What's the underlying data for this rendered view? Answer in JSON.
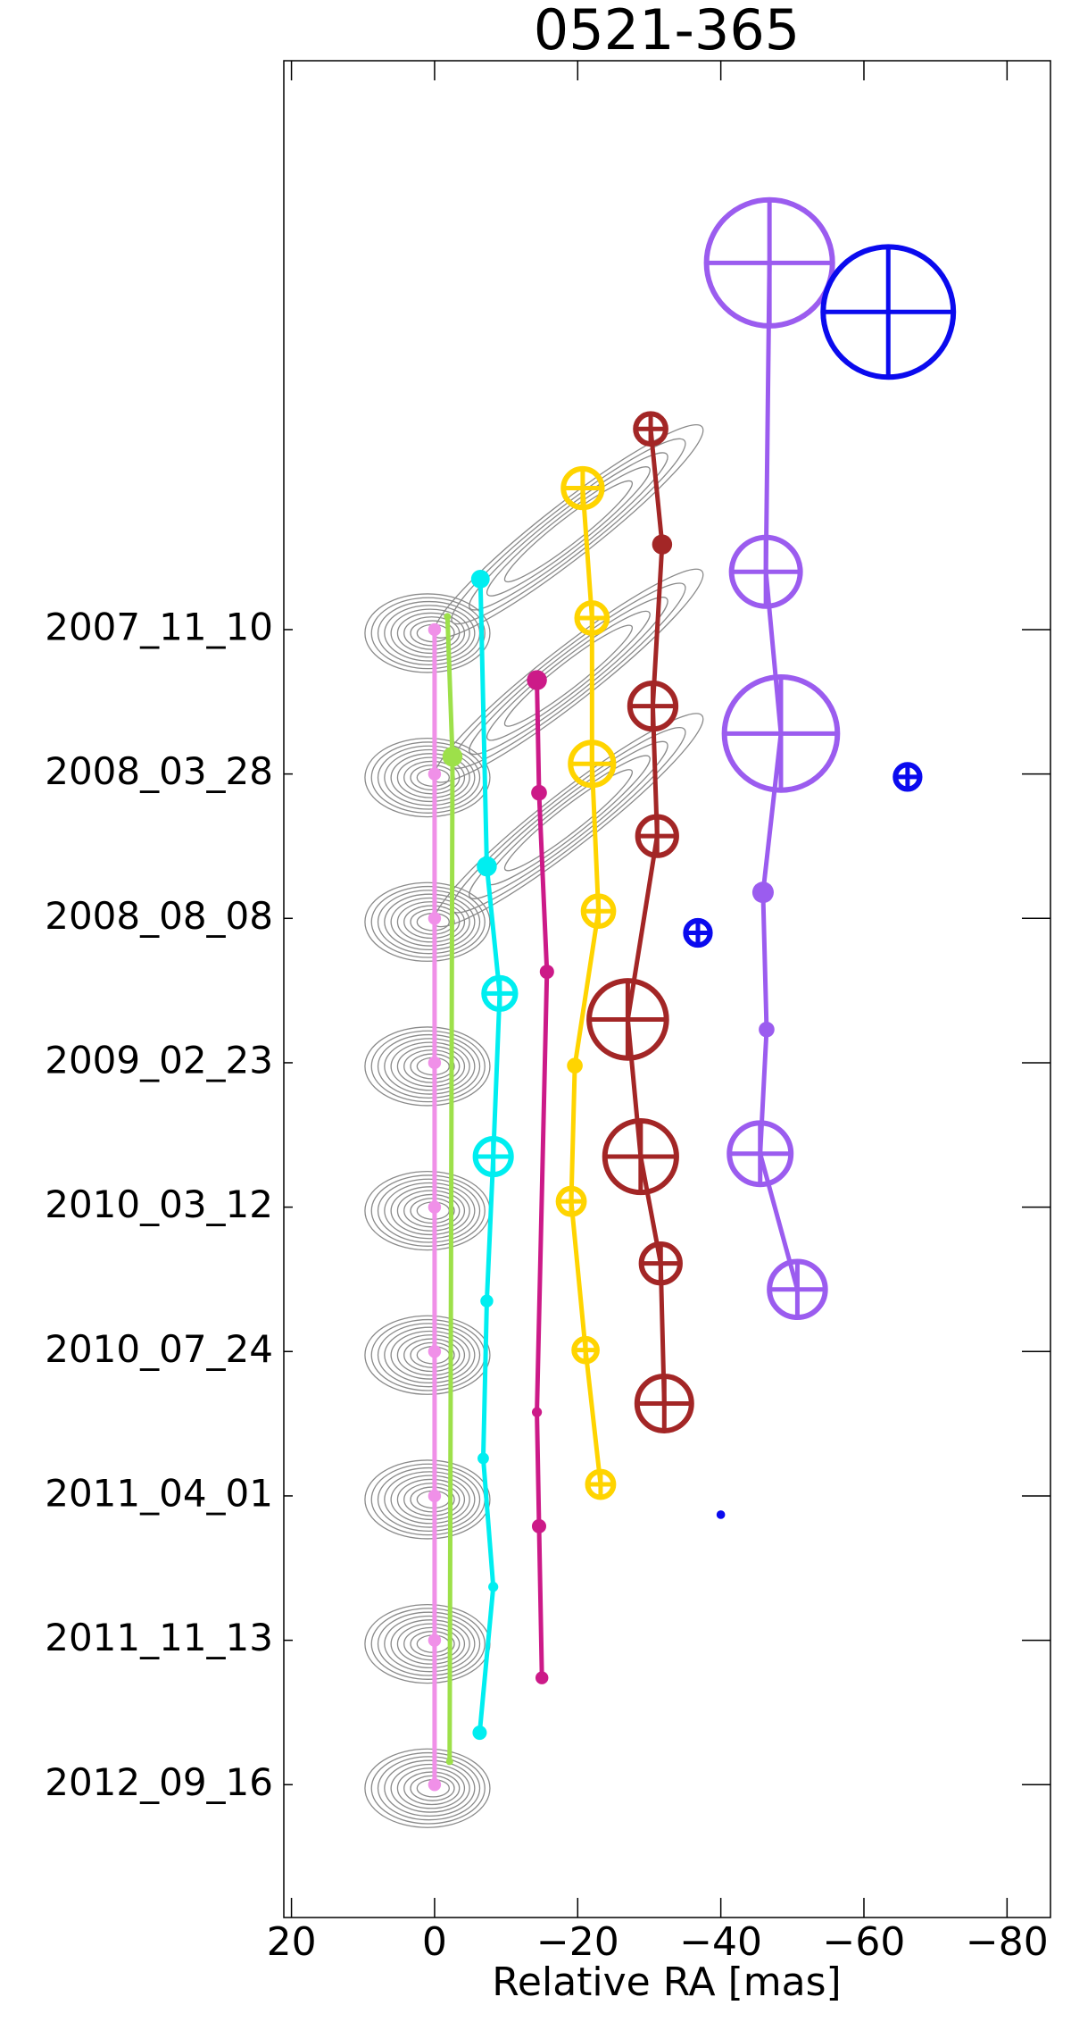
{
  "chart_data": {
    "type": "scatter",
    "title": "0521-365",
    "x_label": "Relative RA [mas]",
    "xlim": [
      21.07,
      -86.07
    ],
    "ylim": [
      -3.94,
      8.92
    ],
    "xticks": [
      20,
      0,
      {
        "value": -20,
        "label": "−20"
      },
      {
        "value": -40,
        "label": "−40"
      },
      {
        "value": -60,
        "label": "−60"
      },
      {
        "value": -80,
        "label": "−80"
      }
    ],
    "yticks": [
      {
        "value": 0,
        "label": "2007_11_10"
      },
      {
        "value": 1,
        "label": "2008_03_28"
      },
      {
        "value": 2,
        "label": "2008_08_08"
      },
      {
        "value": 3,
        "label": "2009_02_23"
      },
      {
        "value": 4,
        "label": "2010_03_12"
      },
      {
        "value": 5,
        "label": "2010_07_24"
      },
      {
        "value": 6,
        "label": "2011_04_01"
      },
      {
        "value": 7,
        "label": "2011_11_13"
      },
      {
        "value": 8,
        "label": "2012_09_16"
      }
    ],
    "series": [
      {
        "color": "#f090e8",
        "line": true,
        "x": [
          0,
          0,
          0,
          0,
          0,
          0,
          0,
          0,
          0
        ],
        "values": [
          0,
          1,
          2,
          3,
          4,
          5,
          6,
          7,
          8
        ],
        "size": [
          0.9,
          0.9,
          0.9,
          0.9,
          0.9,
          0.9,
          0.9,
          0.9,
          0.9
        ]
      },
      {
        "color": "#9de04a",
        "line": true,
        "x": [
          -1.8,
          -2.5,
          -2.1
        ],
        "values": [
          -0.09,
          0.88,
          7.84
        ],
        "size": [
          0.5,
          1.4,
          0.5
        ]
      },
      {
        "color": "#00eef0",
        "line": true,
        "x": [
          -6.4,
          -7.3,
          -9.1,
          -8.2,
          -7.3,
          -6.8,
          -8.2,
          -6.3
        ],
        "values": [
          -0.35,
          1.64,
          2.52,
          3.65,
          4.65,
          5.74,
          6.63,
          7.64
        ],
        "size": [
          1.3,
          1.4,
          2.2,
          2.5,
          0.9,
          0.8,
          0.7,
          1.0
        ]
      },
      {
        "color": "#cc1a88",
        "line": true,
        "x": [
          -14.3,
          -14.6,
          -15.7,
          -14.3,
          -14.6,
          -15.0
        ],
        "values": [
          0.35,
          1.13,
          2.37,
          5.42,
          6.21,
          7.26
        ],
        "size": [
          1.4,
          1.1,
          1.0,
          0.7,
          1.0,
          0.9
        ]
      },
      {
        "color": "#ffd400",
        "line": true,
        "x": [
          -20.7,
          -22.0,
          -22.0,
          -22.9,
          -19.6,
          -19.1,
          -21.1,
          -23.2
        ],
        "values": [
          -0.98,
          -0.08,
          0.93,
          1.95,
          3.02,
          3.96,
          4.99,
          5.92
        ],
        "size": [
          2.7,
          2.1,
          3.0,
          2.1,
          1.1,
          1.8,
          1.6,
          1.8
        ]
      },
      {
        "color": "#a32626",
        "line": true,
        "x": [
          -30.2,
          -31.8,
          -30.5,
          -31.1,
          -27.0,
          -28.8,
          -31.6,
          -32.1
        ],
        "values": [
          -1.39,
          -0.59,
          0.53,
          1.43,
          2.7,
          3.65,
          4.39,
          5.36
        ],
        "size": [
          2.1,
          1.4,
          3.2,
          2.7,
          5.4,
          5.0,
          2.7,
          3.8
        ]
      },
      {
        "color": "#9b5cef",
        "line": true,
        "x": [
          -46.8,
          -46.3,
          -48.4,
          -45.9,
          -46.4,
          -45.5,
          -50.7
        ],
        "values": [
          -2.54,
          -0.4,
          0.72,
          1.82,
          2.77,
          3.63,
          4.57
        ],
        "size": [
          8.8,
          4.8,
          7.9,
          1.5,
          1.1,
          4.3,
          3.9
        ]
      },
      {
        "color": "#0a0aee",
        "line": false,
        "x": [
          -63.4,
          -66.1,
          -36.8,
          -40.0
        ],
        "values": [
          -2.2,
          1.02,
          2.1,
          6.13
        ],
        "size": [
          9.1,
          1.7,
          1.7,
          0.6
        ]
      }
    ]
  }
}
